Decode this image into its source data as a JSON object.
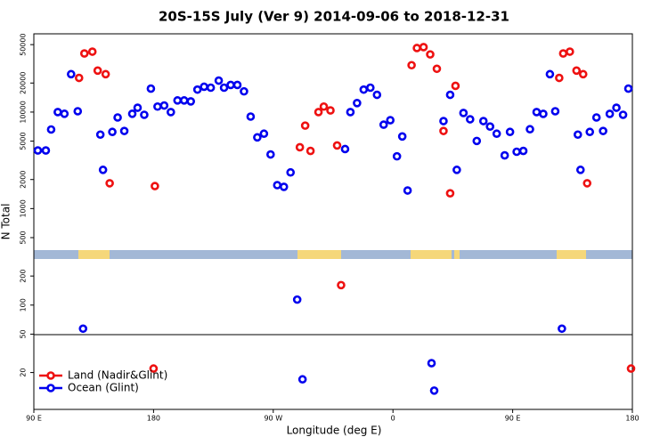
{
  "chart_data": {
    "type": "scatter",
    "title": "20S-15S July (Ver 9)   2014-09-06 to 2018-12-31",
    "x_label": "Longitude (deg E)",
    "y_label": "N Total",
    "ylog": true,
    "legend": "bottom-left",
    "xlim": [
      90,
      540
    ],
    "xticks": [
      {
        "value": 90,
        "label": "90 E"
      },
      180,
      {
        "value": 270,
        "label": "90 W"
      },
      {
        "value": 360,
        "label": "0"
      },
      {
        "value": 450,
        "label": "90 E"
      },
      {
        "value": 540,
        "label": "180"
      }
    ],
    "ylim": [
      8.3,
      64700
    ],
    "yticks": [
      20,
      50,
      100,
      200,
      500,
      1000,
      2000,
      5000,
      10000,
      20000,
      50000
    ],
    "series": [
      {
        "name": "Land (Nadir&Glint)",
        "color": "#ee1111",
        "x": [
          124,
          128,
          134,
          138,
          144,
          147,
          180,
          181,
          290,
          294,
          298,
          304,
          308,
          313,
          318,
          321,
          374,
          378,
          383,
          388,
          393,
          398,
          403,
          407,
          485,
          488,
          493,
          498,
          503,
          506,
          539
        ],
        "values": [
          22600,
          40500,
          42300,
          26900,
          24700,
          1830,
          22,
          1710,
          4320,
          7240,
          3960,
          10000,
          11400,
          10400,
          4510,
          161,
          30600,
          46100,
          47100,
          39600,
          28100,
          6370,
          1440,
          18700,
          22600,
          40500,
          42300,
          26900,
          24700,
          1830,
          22
        ]
      },
      {
        "name": "Ocean (Glint)",
        "color": "#0000ee",
        "x": [
          93,
          99,
          103,
          108,
          113,
          118,
          123,
          127,
          140,
          142,
          149,
          153,
          158,
          164,
          168,
          173,
          178,
          183,
          188,
          193,
          198,
          203,
          208,
          213,
          218,
          223,
          229,
          233,
          238,
          243,
          248,
          253,
          258,
          263,
          268,
          273,
          278,
          283,
          288,
          292,
          324,
          328,
          333,
          338,
          343,
          348,
          353,
          358,
          363,
          367,
          371,
          389,
          391,
          398,
          403,
          408,
          413,
          418,
          423,
          428,
          433,
          438,
          444,
          448,
          453,
          458,
          463,
          468,
          473,
          478,
          482,
          487,
          499,
          501,
          508,
          513,
          518,
          523,
          528,
          533,
          537
        ],
        "values": [
          4000,
          4000,
          6600,
          10000,
          9600,
          24700,
          10200,
          57,
          5840,
          2520,
          6230,
          8790,
          6370,
          9600,
          11100,
          9370,
          17500,
          11400,
          11700,
          10000,
          13200,
          13200,
          12900,
          17100,
          18300,
          17900,
          21200,
          17900,
          19100,
          19100,
          16400,
          8980,
          5470,
          5970,
          3640,
          1750,
          1680,
          2370,
          114,
          17,
          4140,
          10000,
          12400,
          17100,
          17900,
          15100,
          7400,
          8240,
          3480,
          5590,
          1540,
          25,
          13,
          8070,
          15100,
          2520,
          9790,
          8420,
          5020,
          8070,
          7080,
          5970,
          3560,
          6230,
          3880,
          3960,
          6640,
          10000,
          9580,
          24700,
          10200,
          57,
          5840,
          2520,
          6230,
          8790,
          6370,
          9580,
          11100,
          9370,
          17500
        ]
      }
    ]
  }
}
